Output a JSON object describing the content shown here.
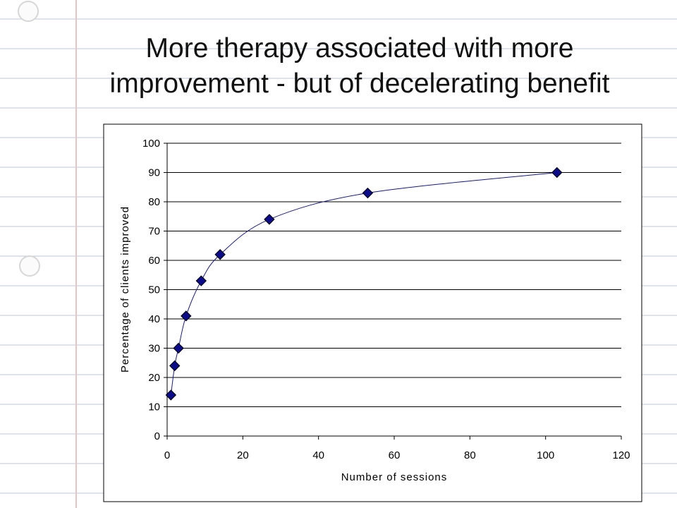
{
  "slide": {
    "title_line1": "More therapy associated with more",
    "title_line2": "improvement - but of decelerating benefit"
  },
  "colors": {
    "paper": "#ffffff",
    "ruled_lines": "#bcc6d6",
    "margin_line": "#e8b9b9",
    "marker_fill": "#0c0c8a",
    "curve": "#1a1a80",
    "gridline": "#000000"
  },
  "chart_data": {
    "type": "scatter",
    "title": "",
    "xlabel": "Number of sessions",
    "ylabel": "Percentage of clients improved",
    "xlim": [
      0,
      120
    ],
    "ylim": [
      0,
      100
    ],
    "xticks": [
      0,
      20,
      40,
      60,
      80,
      100,
      120
    ],
    "yticks": [
      0,
      10,
      20,
      30,
      40,
      50,
      60,
      70,
      80,
      90,
      100
    ],
    "grid": "horizontal",
    "smoothed_line": true,
    "marker": "diamond",
    "series": [
      {
        "x": [
          1,
          2,
          3,
          5,
          9,
          14,
          27,
          53,
          103
        ],
        "y": [
          14,
          24,
          30,
          41,
          53,
          62,
          74,
          83,
          90
        ]
      }
    ]
  }
}
